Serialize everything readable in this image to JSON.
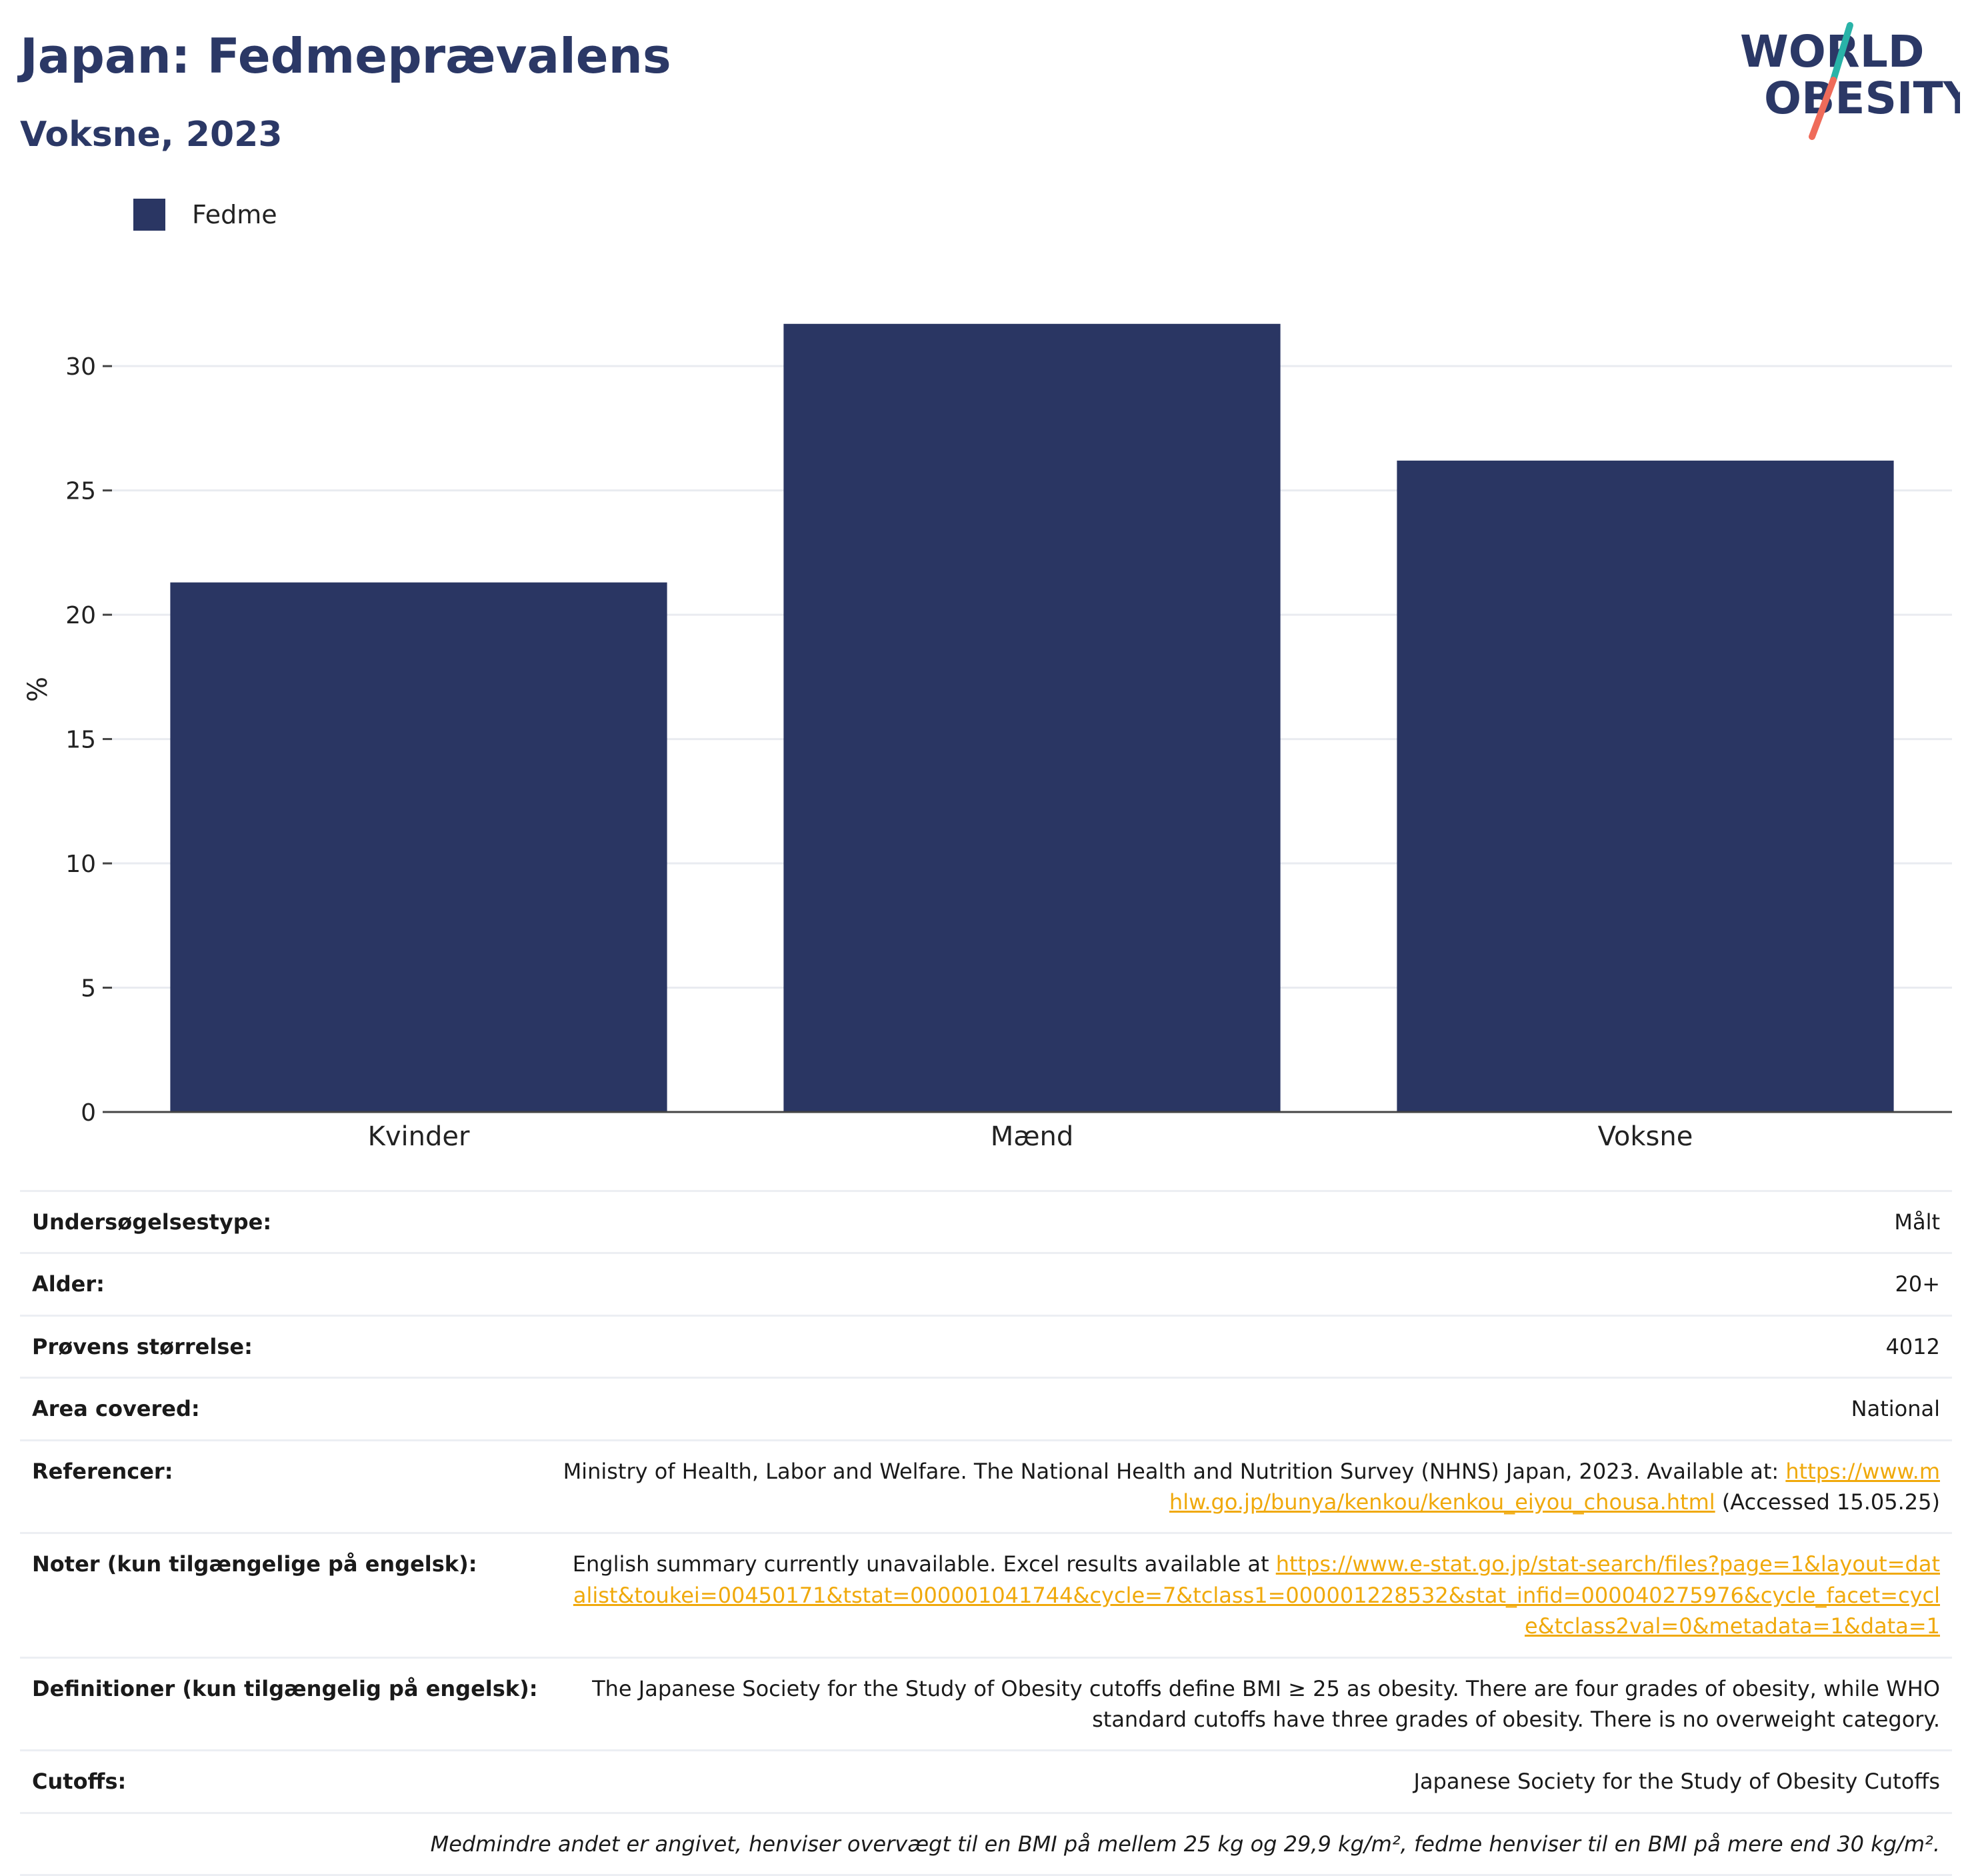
{
  "header": {
    "title": "Japan: Fedmeprævalens",
    "subtitle": "Voksne, 2023"
  },
  "logo": {
    "line1": "WORLD",
    "line2": "OBESITY"
  },
  "legend": {
    "label": "Fedme",
    "color": "#2a3663"
  },
  "chart_data": {
    "type": "bar",
    "categories": [
      "Kvinder",
      "Mænd",
      "Voksne"
    ],
    "series": [
      {
        "name": "Fedme",
        "values": [
          21.3,
          31.7,
          26.2
        ],
        "color": "#2a3663"
      }
    ],
    "ylabel": "%",
    "ylim": [
      0,
      34
    ],
    "yticks": [
      0,
      5,
      10,
      15,
      20,
      25,
      30
    ],
    "grid": true,
    "legend_position": "top-left"
  },
  "info": {
    "survey_type": {
      "label": "Undersøgelsestype:",
      "value": "Målt"
    },
    "age": {
      "label": "Alder:",
      "value": "20+"
    },
    "sample_size": {
      "label": "Prøvens størrelse:",
      "value": "4012"
    },
    "area": {
      "label": "Area covered:",
      "value": "National"
    },
    "references": {
      "label": "Referencer:",
      "text": "Ministry of Health, Labor and Welfare. The National Health and Nutrition Survey (NHNS) Japan, 2023. Available at: ",
      "link": "https://www.mhlw.go.jp/bunya/kenkou/kenkou_eiyou_chousa.html",
      "suffix": " (Accessed 15.05.25)"
    },
    "notes": {
      "label": "Noter (kun tilgængelige på engelsk):",
      "text": "English summary currently unavailable. Excel results available at ",
      "link": "https://www.e-stat.go.jp/stat-search/files?page=1&layout=datalist&toukei=00450171&tstat=000001041744&cycle=7&tclass1=000001228532&stat_infid=000040275976&cycle_facet=cycle&tclass2val=0&metadata=1&data=1"
    },
    "definitions": {
      "label": "Definitioner (kun tilgængelig på engelsk):",
      "value": "The Japanese Society for the Study of Obesity cutoffs define BMI ≥ 25 as obesity. There are four grades of obesity, while WHO standard cutoffs have three grades of obesity. There is no overweight category."
    },
    "cutoffs": {
      "label": "Cutoffs:",
      "value": "Japanese Society for the Study of Obesity Cutoffs"
    },
    "footnote": "Medmindre andet er angivet, henviser overvægt til en BMI på mellem 25 kg og 29,9 kg/m², fedme henviser til en BMI på mere end 30 kg/m²."
  }
}
